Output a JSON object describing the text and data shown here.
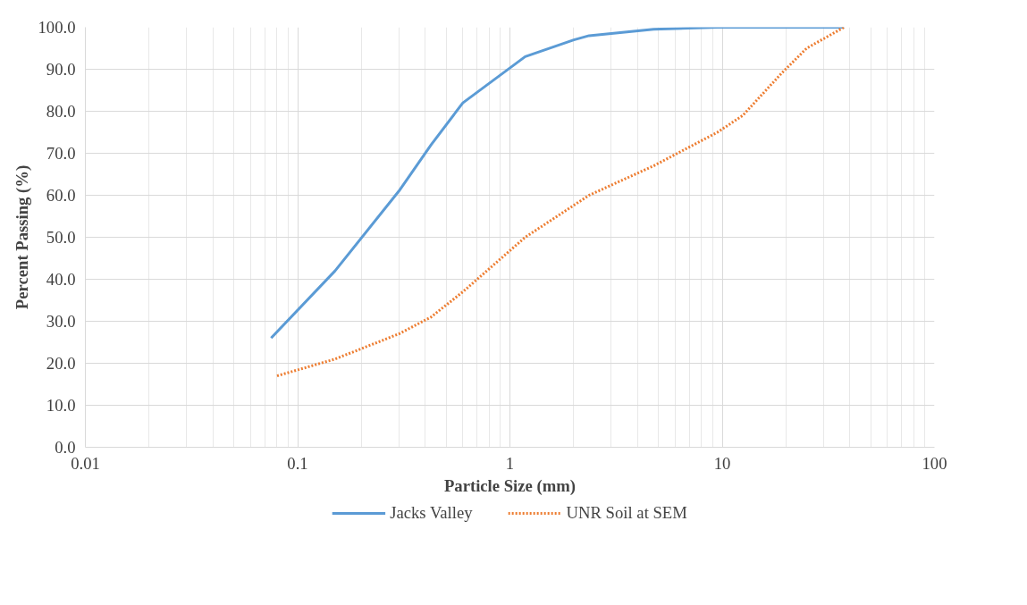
{
  "chart_data": {
    "type": "line",
    "xlabel": "Particle Size (mm)",
    "ylabel": "Percent Passing (%)",
    "log": "x",
    "grid": true,
    "legend": "bottom",
    "marker": "none",
    "xlim": [
      0.01,
      100
    ],
    "xticks": [
      0.01,
      0.1,
      1,
      10,
      100
    ],
    "ylim": [
      0,
      100
    ],
    "yticks": [
      {
        "value": 0,
        "label": "0.0"
      },
      {
        "value": 10,
        "label": "10.0"
      },
      {
        "value": 20,
        "label": "20.0"
      },
      {
        "value": 30,
        "label": "30.0"
      },
      {
        "value": 40,
        "label": "40.0"
      },
      {
        "value": 50,
        "label": "50.0"
      },
      {
        "value": 60,
        "label": "60.0"
      },
      {
        "value": 70,
        "label": "70.0"
      },
      {
        "value": 80,
        "label": "80.0"
      },
      {
        "value": 90,
        "label": "90.0"
      },
      {
        "value": 100,
        "label": "100.0"
      }
    ],
    "series": [
      {
        "name": "Jacks Valley",
        "color": "#5b9bd5",
        "line_style": "solid",
        "x": [
          0.075,
          0.15,
          0.3,
          0.425,
          0.6,
          1.18,
          2.0,
          2.36,
          4.75,
          9.5,
          19,
          37.5
        ],
        "values": [
          26,
          42,
          61,
          72,
          82,
          93,
          97,
          98,
          99.5,
          100,
          100,
          100
        ]
      },
      {
        "name": "UNR Soil at SEM",
        "color": "#ed7d31",
        "line_style": "dotted",
        "x": [
          0.08,
          0.15,
          0.3,
          0.425,
          0.6,
          1.18,
          2.36,
          4.75,
          9.5,
          12.5,
          19,
          25,
          37.5
        ],
        "values": [
          17,
          21,
          27,
          31,
          37,
          50,
          60,
          67,
          75,
          79,
          89,
          95,
          100
        ]
      }
    ]
  }
}
